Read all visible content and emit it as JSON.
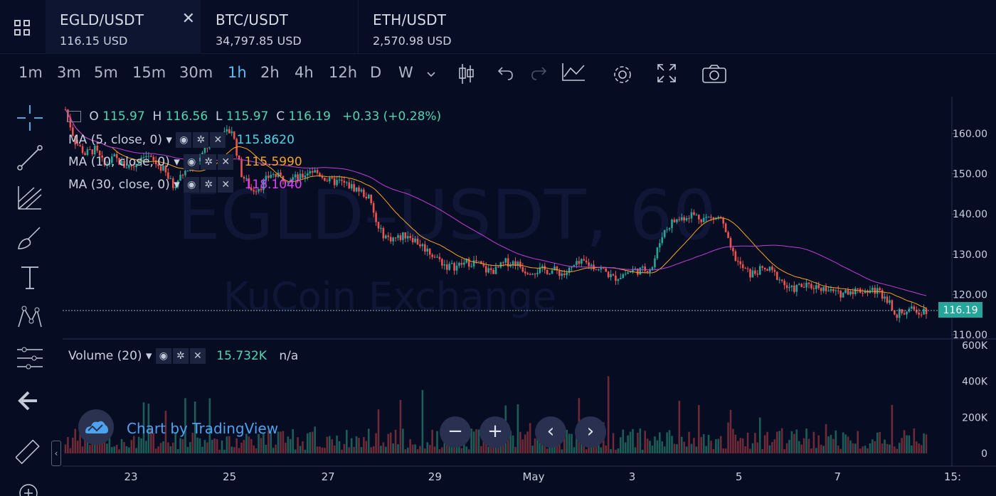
{
  "tabs": [
    {
      "symbol": "EGLD/USDT",
      "price": "116.15 USD",
      "active": true,
      "closable": true
    },
    {
      "symbol": "BTC/USDT",
      "price": "34,797.85 USD",
      "active": false
    },
    {
      "symbol": "ETH/USDT",
      "price": "2,570.98 USD",
      "active": false
    }
  ],
  "timeframes": [
    "1m",
    "3m",
    "5m",
    "15m",
    "30m",
    "1h",
    "2h",
    "4h",
    "12h",
    "D",
    "W"
  ],
  "active_timeframe": "1h",
  "toolbar_icons": [
    "chevron-down-icon",
    "candles-icon",
    "undo-icon",
    "redo-icon",
    "line-chart-icon",
    "gear-icon",
    "fullscreen-icon",
    "camera-icon"
  ],
  "left_tools": [
    "crosshair-icon",
    "trend-line-icon",
    "pitchfork-icon",
    "brush-icon",
    "text-icon",
    "pattern-icon",
    "measure-icon",
    "back-arrow-icon",
    "ruler-icon",
    "zoom-in-icon"
  ],
  "watermark": {
    "line1": "EGLD–USDT, 60",
    "line2": "KuCoin Exchange"
  },
  "ohlc": {
    "o_label": "O",
    "o": "115.97",
    "h_label": "H",
    "h": "116.56",
    "l_label": "L",
    "l": "115.97",
    "c_label": "C",
    "c": "116.19",
    "change": "+0.33 (+0.28%)"
  },
  "indicators": [
    {
      "label": "MA (5, close, 0)",
      "value": "115.8620",
      "color": "#4fd6e6"
    },
    {
      "label": "MA (10, close, 0)",
      "value": "115.5990",
      "color": "#f5a623"
    },
    {
      "label": "MA (30, close, 0)",
      "value": "118.1040",
      "color": "#e040fb"
    }
  ],
  "volume": {
    "label": "Volume (20)",
    "value": "15.732K",
    "na": "n/a"
  },
  "last_price_label": "116.19",
  "tradingview": "Chart by TradingView",
  "nav_buttons": {
    "zoom_out": "−",
    "zoom_in": "+",
    "left": "‹",
    "right": "›"
  },
  "colors": {
    "up": "#26a69a",
    "down": "#ef5350",
    "accent": "#5bbcf2",
    "background": "#060c22"
  },
  "chart_data": {
    "type": "candlestick",
    "price_axis_ticks": [
      "160.00",
      "150.00",
      "140.00",
      "130.00",
      "120.00",
      "110.00"
    ],
    "volume_axis_ticks": [
      "600K",
      "400K",
      "200K",
      "0"
    ],
    "x_tick_labels": [
      "23",
      "25",
      "27",
      "29",
      "May",
      "3",
      "5",
      "7",
      "15:"
    ],
    "price_ylim": [
      110,
      160
    ],
    "volume_ylim": [
      0,
      600000
    ],
    "price_path": [
      {
        "x": 0,
        "y": 166
      },
      {
        "x": 2,
        "y": 158
      },
      {
        "x": 4,
        "y": 155
      },
      {
        "x": 6,
        "y": 156
      },
      {
        "x": 8,
        "y": 152
      },
      {
        "x": 10,
        "y": 154
      },
      {
        "x": 12,
        "y": 152
      },
      {
        "x": 14,
        "y": 152
      },
      {
        "x": 16,
        "y": 155
      },
      {
        "x": 18,
        "y": 153
      },
      {
        "x": 20,
        "y": 151
      },
      {
        "x": 22,
        "y": 147
      },
      {
        "x": 24,
        "y": 150
      },
      {
        "x": 26,
        "y": 152
      },
      {
        "x": 28,
        "y": 155
      },
      {
        "x": 30,
        "y": 158
      },
      {
        "x": 32,
        "y": 159
      },
      {
        "x": 34,
        "y": 161
      },
      {
        "x": 36,
        "y": 150
      },
      {
        "x": 38,
        "y": 146
      },
      {
        "x": 40,
        "y": 147
      },
      {
        "x": 42,
        "y": 150
      },
      {
        "x": 44,
        "y": 149
      },
      {
        "x": 46,
        "y": 149
      },
      {
        "x": 48,
        "y": 149
      },
      {
        "x": 50,
        "y": 151
      },
      {
        "x": 52,
        "y": 150
      },
      {
        "x": 54,
        "y": 148
      },
      {
        "x": 56,
        "y": 148
      },
      {
        "x": 58,
        "y": 147
      },
      {
        "x": 60,
        "y": 146
      },
      {
        "x": 62,
        "y": 144
      },
      {
        "x": 64,
        "y": 136
      },
      {
        "x": 66,
        "y": 134
      },
      {
        "x": 68,
        "y": 134
      },
      {
        "x": 70,
        "y": 135
      },
      {
        "x": 72,
        "y": 133
      },
      {
        "x": 74,
        "y": 131
      },
      {
        "x": 76,
        "y": 129
      },
      {
        "x": 78,
        "y": 127
      },
      {
        "x": 80,
        "y": 127
      },
      {
        "x": 82,
        "y": 128
      },
      {
        "x": 84,
        "y": 128
      },
      {
        "x": 86,
        "y": 126
      },
      {
        "x": 88,
        "y": 126
      },
      {
        "x": 90,
        "y": 128
      },
      {
        "x": 92,
        "y": 128
      },
      {
        "x": 94,
        "y": 126
      },
      {
        "x": 96,
        "y": 126
      },
      {
        "x": 98,
        "y": 126
      },
      {
        "x": 100,
        "y": 126
      },
      {
        "x": 102,
        "y": 125
      },
      {
        "x": 104,
        "y": 127
      },
      {
        "x": 106,
        "y": 128
      },
      {
        "x": 108,
        "y": 127
      },
      {
        "x": 110,
        "y": 126
      },
      {
        "x": 112,
        "y": 124
      },
      {
        "x": 114,
        "y": 125
      },
      {
        "x": 116,
        "y": 126
      },
      {
        "x": 118,
        "y": 126
      },
      {
        "x": 120,
        "y": 127
      },
      {
        "x": 122,
        "y": 135
      },
      {
        "x": 124,
        "y": 138
      },
      {
        "x": 126,
        "y": 139
      },
      {
        "x": 128,
        "y": 140
      },
      {
        "x": 130,
        "y": 139
      },
      {
        "x": 132,
        "y": 139
      },
      {
        "x": 134,
        "y": 139
      },
      {
        "x": 136,
        "y": 131
      },
      {
        "x": 138,
        "y": 127
      },
      {
        "x": 140,
        "y": 125
      },
      {
        "x": 142,
        "y": 126
      },
      {
        "x": 144,
        "y": 126
      },
      {
        "x": 146,
        "y": 124
      },
      {
        "x": 148,
        "y": 121
      },
      {
        "x": 150,
        "y": 122
      },
      {
        "x": 152,
        "y": 122
      },
      {
        "x": 154,
        "y": 122
      },
      {
        "x": 156,
        "y": 121
      },
      {
        "x": 158,
        "y": 120
      },
      {
        "x": 160,
        "y": 121
      },
      {
        "x": 162,
        "y": 121
      },
      {
        "x": 164,
        "y": 121
      },
      {
        "x": 166,
        "y": 121
      },
      {
        "x": 168,
        "y": 119
      },
      {
        "x": 170,
        "y": 115
      },
      {
        "x": 172,
        "y": 116
      },
      {
        "x": 174,
        "y": 116
      },
      {
        "x": 176,
        "y": 116.19
      }
    ]
  }
}
